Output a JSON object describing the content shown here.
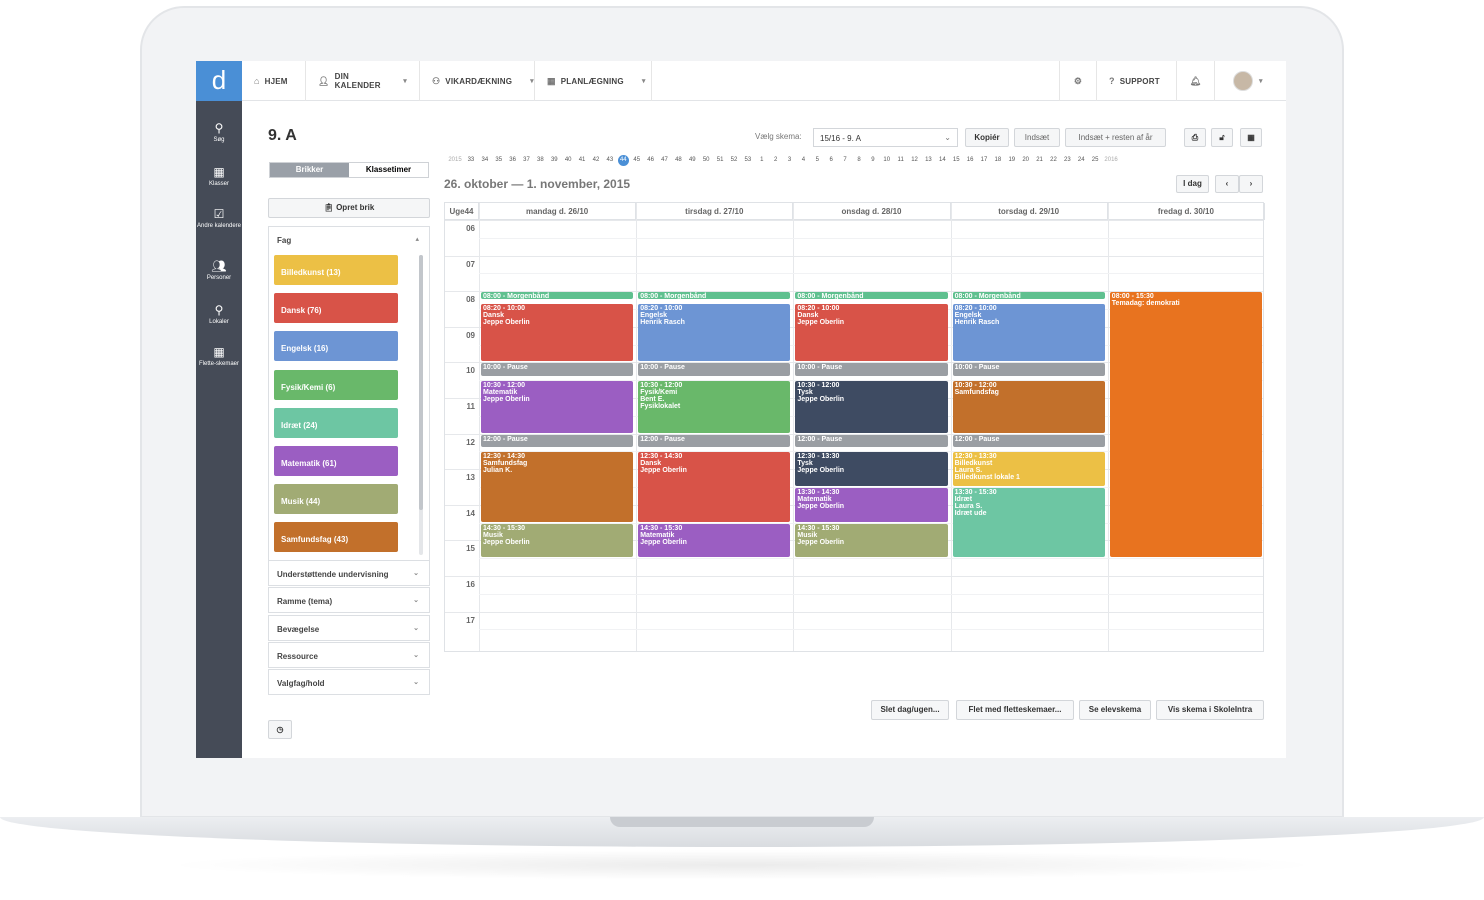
{
  "app": {
    "logo": "d"
  },
  "topnav": {
    "home": "HJEM",
    "calendar": "DIN KALENDER",
    "substitute": "VIKARDÆKNING",
    "planning": "PLANLÆGNING",
    "support": "SUPPORT"
  },
  "sidebar": [
    {
      "label": "Søg",
      "icon": "search-icon"
    },
    {
      "label": "Klasser",
      "icon": "calendar-icon"
    },
    {
      "label": "Andre kalendere",
      "icon": "calendar-check-icon"
    },
    {
      "label": "Personer",
      "icon": "people-icon"
    },
    {
      "label": "Lokaler",
      "icon": "location-icon"
    },
    {
      "label": "Flette-skemaer",
      "icon": "calendar-grid-icon"
    }
  ],
  "page": {
    "title": "9. A"
  },
  "tabs": {
    "active": "Brikker",
    "other": "Klassetimer"
  },
  "create_button": "Opret brik",
  "fag": {
    "header": "Fag",
    "items": [
      {
        "label": "Billedkunst (13)",
        "color": "#ecc045"
      },
      {
        "label": "Dansk (76)",
        "color": "#d85348"
      },
      {
        "label": "Engelsk (16)",
        "color": "#6d95d4"
      },
      {
        "label": "Fysik/Kemi (6)",
        "color": "#69b86a"
      },
      {
        "label": "Idræt (24)",
        "color": "#6dc6a3"
      },
      {
        "label": "Matematik (61)",
        "color": "#9b5ec2"
      },
      {
        "label": "Musik (44)",
        "color": "#a1ab74"
      },
      {
        "label": "Samfundsfag (43)",
        "color": "#c2702b"
      }
    ]
  },
  "accordions": [
    "Understøttende undervisning",
    "Ramme (tema)",
    "Bevægelse",
    "Ressource",
    "Valgfag/hold"
  ],
  "toolbar": {
    "label": "Vælg skema:",
    "selected": "15/16 - 9. A",
    "copy": "Kopiér",
    "insert": "Indsæt",
    "insert_rest": "Indsæt + resten af år"
  },
  "weeks": {
    "year_start": "2015",
    "list": [
      "33",
      "34",
      "35",
      "36",
      "37",
      "38",
      "39",
      "40",
      "41",
      "42",
      "43",
      "44",
      "45",
      "46",
      "47",
      "48",
      "49",
      "50",
      "51",
      "52",
      "53",
      "1",
      "2",
      "3",
      "4",
      "5",
      "6",
      "7",
      "8",
      "9",
      "10",
      "11",
      "12",
      "13",
      "14",
      "15",
      "16",
      "17",
      "18",
      "19",
      "20",
      "21",
      "22",
      "23",
      "24",
      "25"
    ],
    "current": "44",
    "year_end": "2016"
  },
  "range": "26. oktober — 1. november, 2015",
  "today_button": "I dag",
  "calendar": {
    "week_label": "Uge44",
    "days": [
      "mandag d. 26/10",
      "tirsdag d. 27/10",
      "onsdag d. 28/10",
      "torsdag d. 29/10",
      "fredag d. 30/10"
    ],
    "hours": [
      "06",
      "07",
      "08",
      "09",
      "10",
      "11",
      "12",
      "13",
      "14",
      "15",
      "16",
      "17"
    ]
  },
  "events": [
    {
      "day": 0,
      "start": 8.0,
      "end": 8.25,
      "l1": "08:00 - Morgenbånd",
      "l2": "",
      "l3": "",
      "color": "#5fc08f"
    },
    {
      "day": 0,
      "start": 8.33,
      "end": 10.0,
      "l1": "08:20 - 10:00",
      "l2": "Dansk",
      "l3": "Jeppe Oberlin",
      "color": "#d85348"
    },
    {
      "day": 0,
      "start": 10.0,
      "end": 10.4,
      "l1": "10:00 - Pause",
      "l2": "",
      "l3": "",
      "color": "#9a9ea3"
    },
    {
      "day": 0,
      "start": 10.5,
      "end": 12.0,
      "l1": "10:30 - 12:00",
      "l2": "Matematik",
      "l3": "Jeppe Oberlin",
      "color": "#9b5ec2"
    },
    {
      "day": 0,
      "start": 12.0,
      "end": 12.4,
      "l1": "12:00 - Pause",
      "l2": "",
      "l3": "",
      "color": "#9a9ea3"
    },
    {
      "day": 0,
      "start": 12.5,
      "end": 14.5,
      "l1": "12:30 - 14:30",
      "l2": "Samfundsfag",
      "l3": "Julian K.",
      "color": "#c2702b"
    },
    {
      "day": 0,
      "start": 14.5,
      "end": 15.5,
      "l1": "14:30 - 15:30",
      "l2": "Musik",
      "l3": "Jeppe Oberlin",
      "color": "#a1ab74"
    },
    {
      "day": 1,
      "start": 8.0,
      "end": 8.25,
      "l1": "08:00 - Morgenbånd",
      "l2": "",
      "l3": "",
      "color": "#5fc08f"
    },
    {
      "day": 1,
      "start": 8.33,
      "end": 10.0,
      "l1": "08:20 - 10:00",
      "l2": "Engelsk",
      "l3": "Henrik Rasch",
      "color": "#6d95d4"
    },
    {
      "day": 1,
      "start": 10.0,
      "end": 10.4,
      "l1": "10:00 - Pause",
      "l2": "",
      "l3": "",
      "color": "#9a9ea3"
    },
    {
      "day": 1,
      "start": 10.5,
      "end": 12.0,
      "l1": "10:30 - 12:00",
      "l2": "Fysik/Kemi",
      "l3": "Bent E.",
      "l4": "Fysiklokalet",
      "color": "#69b86a"
    },
    {
      "day": 1,
      "start": 12.0,
      "end": 12.4,
      "l1": "12:00 - Pause",
      "l2": "",
      "l3": "",
      "color": "#9a9ea3"
    },
    {
      "day": 1,
      "start": 12.5,
      "end": 14.5,
      "l1": "12:30 - 14:30",
      "l2": "Dansk",
      "l3": "Jeppe Oberlin",
      "color": "#d85348"
    },
    {
      "day": 1,
      "start": 14.5,
      "end": 15.5,
      "l1": "14:30 - 15:30",
      "l2": "Matematik",
      "l3": "Jeppe Oberlin",
      "color": "#9b5ec2"
    },
    {
      "day": 2,
      "start": 8.0,
      "end": 8.25,
      "l1": "08:00 - Morgenbånd",
      "l2": "",
      "l3": "",
      "color": "#5fc08f"
    },
    {
      "day": 2,
      "start": 8.33,
      "end": 10.0,
      "l1": "08:20 - 10:00",
      "l2": "Dansk",
      "l3": "Jeppe Oberlin",
      "color": "#d85348"
    },
    {
      "day": 2,
      "start": 10.0,
      "end": 10.4,
      "l1": "10:00 - Pause",
      "l2": "",
      "l3": "",
      "color": "#9a9ea3"
    },
    {
      "day": 2,
      "start": 10.5,
      "end": 12.0,
      "l1": "10:30 - 12:00",
      "l2": "Tysk",
      "l3": "Jeppe Oberlin",
      "color": "#3e4b62"
    },
    {
      "day": 2,
      "start": 12.0,
      "end": 12.4,
      "l1": "12:00 - Pause",
      "l2": "",
      "l3": "",
      "color": "#9a9ea3"
    },
    {
      "day": 2,
      "start": 12.5,
      "end": 13.5,
      "l1": "12:30 - 13:30",
      "l2": "Tysk",
      "l3": "Jeppe Oberlin",
      "color": "#3e4b62"
    },
    {
      "day": 2,
      "start": 13.5,
      "end": 14.5,
      "l1": "13:30 - 14:30",
      "l2": "Matematik",
      "l3": "Jeppe Oberlin",
      "color": "#9b5ec2"
    },
    {
      "day": 2,
      "start": 14.5,
      "end": 15.5,
      "l1": "14:30 - 15:30",
      "l2": "Musik",
      "l3": "Jeppe Oberlin",
      "color": "#a1ab74"
    },
    {
      "day": 3,
      "start": 8.0,
      "end": 8.25,
      "l1": "08:00 - Morgenbånd",
      "l2": "",
      "l3": "",
      "color": "#5fc08f"
    },
    {
      "day": 3,
      "start": 8.33,
      "end": 10.0,
      "l1": "08:20 - 10:00",
      "l2": "Engelsk",
      "l3": "Henrik Rasch",
      "color": "#6d95d4"
    },
    {
      "day": 3,
      "start": 10.0,
      "end": 10.4,
      "l1": "10:00 - Pause",
      "l2": "",
      "l3": "",
      "color": "#9a9ea3"
    },
    {
      "day": 3,
      "start": 10.5,
      "end": 12.0,
      "l1": "10:30 - 12:00",
      "l2": "Samfundsfag",
      "l3": "",
      "color": "#c2702b"
    },
    {
      "day": 3,
      "start": 12.0,
      "end": 12.4,
      "l1": "12:00 - Pause",
      "l2": "",
      "l3": "",
      "color": "#9a9ea3"
    },
    {
      "day": 3,
      "start": 12.5,
      "end": 13.5,
      "l1": "12:30 - 13:30",
      "l2": "Billedkunst",
      "l3": "Laura S.",
      "l4": "Billedkunst lokale 1",
      "color": "#ecc045"
    },
    {
      "day": 3,
      "start": 13.5,
      "end": 15.5,
      "l1": "13:30 - 15:30",
      "l2": "Idræt",
      "l3": "Laura S.",
      "l4": "Idræt ude",
      "color": "#6dc6a3"
    },
    {
      "day": 4,
      "start": 8.0,
      "end": 15.5,
      "l1": "08:00 - 15:30",
      "l2": "Temadag: demokrati",
      "l3": "",
      "color": "#e8731f"
    }
  ],
  "bottom_buttons": [
    "Slet dag/ugen...",
    "Flet med fletteskemaer...",
    "Se elevskema",
    "Vis skema i SkoleIntra"
  ]
}
